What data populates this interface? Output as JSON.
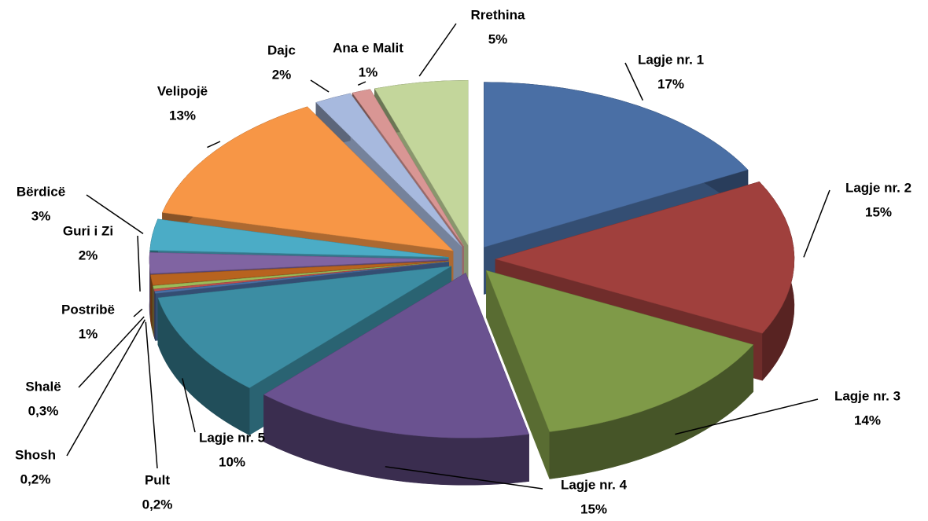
{
  "chart_data": {
    "type": "pie",
    "categories": [
      "Lagje nr. 1",
      "Lagje nr. 2",
      "Lagje nr. 3",
      "Lagje nr. 4",
      "Lagje nr. 5",
      "Pult",
      "Shosh",
      "Shalë",
      "Postribë",
      "Guri i Zi",
      "Bërdicë",
      "Velipojë",
      "Dajc",
      "Ana e Malit",
      "Rrethina"
    ],
    "values": [
      17,
      15,
      14,
      15,
      10,
      0.2,
      0.2,
      0.3,
      1,
      2,
      3,
      13,
      2,
      1,
      5
    ],
    "value_labels": [
      "17%",
      "15%",
      "14%",
      "15%",
      "10%",
      "0,2%",
      "0,2%",
      "0,3%",
      "1%",
      "2%",
      "3%",
      "13%",
      "2%",
      "1%",
      "5%"
    ],
    "colors": [
      "#4a6fa5",
      "#a0403d",
      "#7f9a48",
      "#6a5290",
      "#3c8da3",
      "#4a6fa5",
      "#c0504d",
      "#9bbb59",
      "#b8631f",
      "#8064a2",
      "#4bacc6",
      "#f79646",
      "#a7b9de",
      "#d99694",
      "#c3d69b"
    ]
  }
}
